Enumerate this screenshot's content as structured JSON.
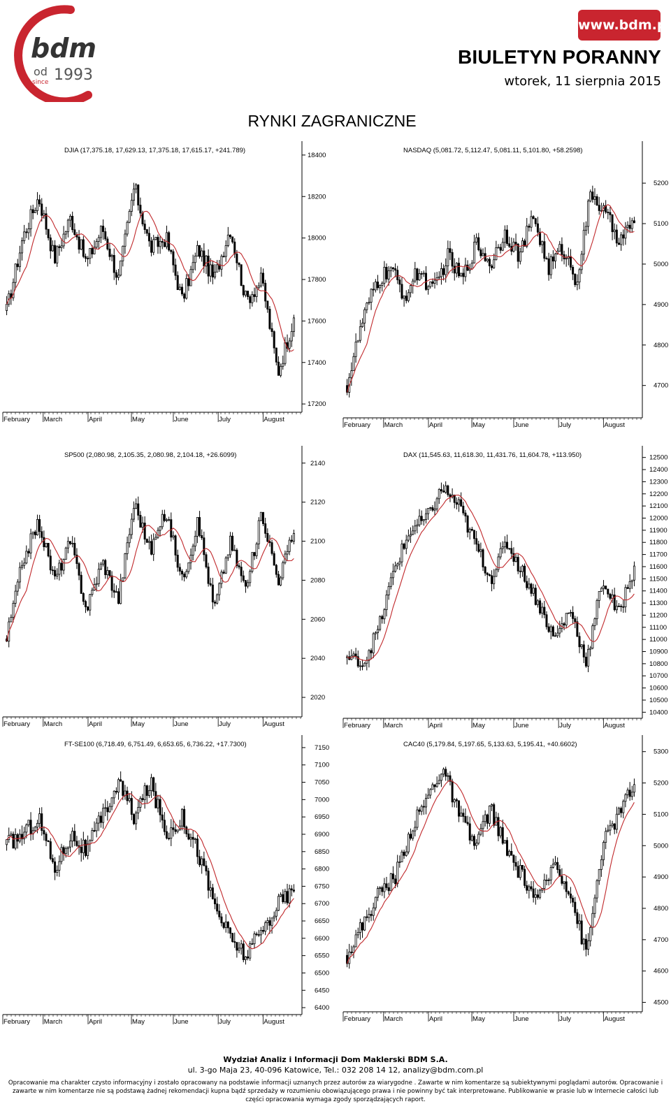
{
  "header": {
    "logo_text": "bdm",
    "logo_since_od": "od",
    "logo_since_word": "since",
    "logo_year": "1993",
    "site": "www.bdm.pl",
    "title": "BIULETYN PORANNY",
    "date": "wtorek, 11 sierpnia 2015"
  },
  "colors": {
    "brand_red": "#c9252f",
    "ma_line": "#c0282b",
    "candle": "#000000"
  },
  "section_title": "RYNKI ZAGRANICZNE",
  "months": [
    "February",
    "March",
    "April",
    "May",
    "June",
    "July",
    "August"
  ],
  "chart_data": [
    {
      "type": "candlestick",
      "title": "DJIA (17,375.18, 17,629.13, 17,375.18, 17,615.17, +241.789)",
      "series": [
        {
          "name": "price",
          "start": 17650,
          "min": 17300,
          "max": 18300,
          "anchors": [
            17650,
            18000,
            18200,
            17900,
            18100,
            17880,
            18050,
            17800,
            18250,
            17950,
            18000,
            17700,
            17950,
            17800,
            18050,
            17700,
            17800,
            17350,
            17615
          ]
        },
        {
          "name": "moving average",
          "style": "red line"
        }
      ],
      "yticks": [
        17200,
        17400,
        17600,
        17800,
        18000,
        18200,
        18400
      ],
      "ylim": [
        17160,
        18440
      ],
      "xlabels": [
        "February",
        "March",
        "April",
        "May",
        "June",
        "July",
        "August"
      ]
    },
    {
      "type": "candlestick",
      "title": "NASDAQ (5,081.72, 5,112.47, 5,081.11, 5,101.80, +58.2598)",
      "series": [
        {
          "name": "price",
          "start": 4700,
          "min": 4680,
          "max": 5225,
          "anchors": [
            4700,
            4850,
            4950,
            4990,
            4920,
            4985,
            4930,
            5020,
            4960,
            5050,
            5000,
            5080,
            5020,
            5120,
            4990,
            5040,
            4960,
            5180,
            5120,
            5060,
            5102
          ]
        },
        {
          "name": "moving average",
          "style": "red line"
        }
      ],
      "yticks": [
        4700,
        4800,
        4900,
        5000,
        5100,
        5200
      ],
      "ylim": [
        4620,
        5290
      ],
      "xlabels": [
        "February",
        "March",
        "April",
        "May",
        "June",
        "July",
        "August"
      ]
    },
    {
      "type": "candlestick",
      "title": "SP500 (2,080.98, 2,105.35, 2,080.98, 2,104.18, +26.6099)",
      "series": [
        {
          "name": "price",
          "start": 2050,
          "min": 2040,
          "max": 2133,
          "anchors": [
            2050,
            2090,
            2110,
            2080,
            2100,
            2065,
            2090,
            2070,
            2120,
            2095,
            2115,
            2080,
            2110,
            2065,
            2100,
            2075,
            2115,
            2080,
            2104
          ]
        },
        {
          "name": "moving average",
          "style": "red line"
        }
      ],
      "yticks": [
        2020,
        2040,
        2060,
        2080,
        2100,
        2120,
        2140
      ],
      "ylim": [
        2010,
        2146
      ],
      "xlabels": [
        "February",
        "March",
        "April",
        "May",
        "June",
        "July",
        "August"
      ]
    },
    {
      "type": "candlestick",
      "title": "DAX (11,545.63, 11,618.30, 11,431.76, 11,604.78, +113.950)",
      "series": [
        {
          "name": "price",
          "start": 10850,
          "min": 10780,
          "max": 12380,
          "anchors": [
            10850,
            10800,
            11100,
            11600,
            11900,
            12000,
            12250,
            12100,
            11800,
            11500,
            11800,
            11550,
            11300,
            11000,
            11250,
            10800,
            11500,
            11200,
            11605
          ]
        },
        {
          "name": "moving average",
          "style": "red line"
        }
      ],
      "yticks": [
        10400,
        10500,
        10600,
        10700,
        10800,
        10900,
        11000,
        11100,
        11200,
        11300,
        11400,
        11500,
        11600,
        11700,
        11800,
        11900,
        12000,
        12100,
        12200,
        12300,
        12400,
        12500
      ],
      "ylim": [
        10350,
        12550
      ],
      "xlabels": [
        "February",
        "March",
        "April",
        "May",
        "June",
        "July",
        "August"
      ]
    },
    {
      "type": "candlestick",
      "title": "FT-SE100 (6,718.49, 6,751.49, 6,653.65, 6,736.22, +17.7300)",
      "series": [
        {
          "name": "price",
          "start": 6870,
          "min": 6450,
          "max": 7100,
          "anchors": [
            6870,
            6900,
            6950,
            6800,
            6900,
            6850,
            6950,
            7050,
            6950,
            7050,
            6900,
            6950,
            6850,
            6700,
            6600,
            6550,
            6620,
            6700,
            6736
          ]
        },
        {
          "name": "moving average",
          "style": "red line"
        }
      ],
      "yticks": [
        6400,
        6450,
        6500,
        6550,
        6600,
        6650,
        6700,
        6750,
        6800,
        6850,
        6900,
        6950,
        7000,
        7050,
        7100,
        7150
      ],
      "ylim": [
        6380,
        7170
      ],
      "xlabels": [
        "February",
        "March",
        "April",
        "May",
        "June",
        "July",
        "August"
      ]
    },
    {
      "type": "candlestick",
      "title": "CAC40 (5,179.84, 5,197.65, 5,133.63, 5,195.41, +40.6602)",
      "series": [
        {
          "name": "price",
          "start": 4650,
          "min": 4620,
          "max": 5280,
          "anchors": [
            4650,
            4750,
            4850,
            4900,
            5050,
            5150,
            5250,
            5100,
            5000,
            5120,
            4980,
            4900,
            4820,
            4950,
            4850,
            4650,
            5000,
            5100,
            5195
          ]
        },
        {
          "name": "moving average",
          "style": "red line"
        }
      ],
      "yticks": [
        4500,
        4600,
        4700,
        4800,
        4900,
        5000,
        5100,
        5200,
        5300
      ],
      "ylim": [
        4470,
        5335
      ],
      "xlabels": [
        "February",
        "March",
        "April",
        "May",
        "June",
        "July",
        "August"
      ]
    }
  ],
  "footer": {
    "department": "Wydział Analiz i Informacji Dom Maklerski BDM S.A.",
    "address": "ul. 3-go Maja 23, 40-096 Katowice, Tel.: 032 208 14 12, analizy@bdm.com.pl",
    "disclaimer": "Opracowanie ma charakter czysto informacyjny i zostało opracowany na podstawie informacji uznanych przez autorów za wiarygodne . Zawarte w nim komentarze są subiektywnymi poglądami autorów. Opracowanie i zawarte w nim komentarze nie są podstawą żadnej rekomendacji kupna bądź sprzedaży w rozumieniu obowiązującego prawa i nie powinny być tak interpretowane. Publikowanie w prasie lub w Internecie całości lub części opracowania wymaga zgody sporządzających raport."
  }
}
